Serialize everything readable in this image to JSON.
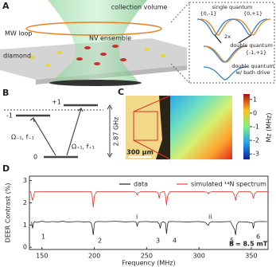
{
  "panel_a": {
    "letter": "A",
    "collection_volume": "collection volume",
    "mw_loop": "MW loop",
    "nv_ensemble": "NV ensemble",
    "diamond": "diamond",
    "inset": {
      "single_quantum": "single quantum",
      "sq_left": "{0,-1}",
      "sq_right": "{0,+1}",
      "factor": "2x",
      "double_quantum": "double quantum",
      "dq_label": "{-1,+1}",
      "bath_line1": "double quantum",
      "bath_line2": "w/ bath drive"
    }
  },
  "panel_b": {
    "letter": "B",
    "level_minus": "-1",
    "level_plus": "+1",
    "level_zero": "0",
    "drive_minus": "Ω₋₁, f₋₁",
    "drive_plus": "Ω₊₁, f₊₁",
    "splitting": "2.87 GHz"
  },
  "panel_c": {
    "letter": "C",
    "scale_bar": "300 μm",
    "colorbar_label": "Mz (MHz)",
    "colorbar_lim": [
      -3.4,
      1.4
    ],
    "colorbar_ticks": [
      1,
      0,
      -1,
      -2,
      -3
    ]
  },
  "panel_d": {
    "letter": "D",
    "xlabel": "Frequency (MHz)",
    "ylabel": "DEER Contrast (%)",
    "xlim": [
      138,
      366
    ],
    "ylim": [
      -0.1,
      3.2
    ],
    "xticks": [
      150,
      200,
      250,
      300,
      350
    ],
    "yticks": [
      0,
      1,
      2,
      3
    ],
    "series": [
      {
        "name": "data",
        "color": "#222222",
        "x": [
          140,
          141,
          142,
          143,
          145,
          150,
          155,
          160,
          165,
          170,
          175,
          180,
          185,
          190,
          195,
          197,
          198,
          199,
          200,
          201,
          203,
          210,
          220,
          230,
          238,
          240,
          241,
          242,
          244,
          250,
          255,
          260,
          262,
          263,
          264,
          266,
          268,
          269,
          270,
          271,
          273,
          280,
          290,
          300,
          306,
          308,
          309,
          310,
          312,
          320,
          330,
          334,
          335,
          336,
          338,
          345,
          351,
          352,
          353,
          355,
          360,
          365
        ],
        "values": [
          1.15,
          0.85,
          1.1,
          1.15,
          1.12,
          1.17,
          1.13,
          1.16,
          1.14,
          1.17,
          1.13,
          1.15,
          1.16,
          1.14,
          1.15,
          1.1,
          0.9,
          0.55,
          1.05,
          1.14,
          1.16,
          1.15,
          1.17,
          1.14,
          1.16,
          1.12,
          0.95,
          1.12,
          1.15,
          1.16,
          1.14,
          1.15,
          1.05,
          0.85,
          1.1,
          1.15,
          1.08,
          0.6,
          1.05,
          1.15,
          1.16,
          1.15,
          1.14,
          1.16,
          1.12,
          1.02,
          0.98,
          1.1,
          1.15,
          1.14,
          1.16,
          0.8,
          0.55,
          1.0,
          1.15,
          1.14,
          1.1,
          0.85,
          1.12,
          1.15,
          1.16,
          1.15
        ]
      },
      {
        "name": "simulated ¹⁴N spectrum",
        "color": "#e8413c",
        "x": [
          138,
          139,
          141,
          143,
          190,
          197,
          198,
          199,
          200,
          202,
          238,
          240,
          241,
          242,
          244,
          259,
          261,
          262,
          263,
          265,
          267,
          268,
          269,
          270,
          272,
          305,
          308,
          309,
          310,
          312,
          332,
          334,
          335,
          336,
          338,
          349,
          351,
          352,
          353,
          355,
          366
        ],
        "values": [
          2.5,
          2.5,
          2.1,
          2.5,
          2.5,
          2.5,
          2.3,
          1.8,
          2.3,
          2.5,
          2.5,
          2.45,
          2.35,
          2.45,
          2.5,
          2.5,
          2.45,
          2.2,
          2.45,
          2.5,
          2.5,
          2.3,
          1.9,
          2.3,
          2.5,
          2.5,
          2.47,
          2.4,
          2.47,
          2.5,
          2.5,
          2.35,
          2.1,
          2.35,
          2.5,
          2.5,
          2.4,
          2.2,
          2.4,
          2.5,
          2.5
        ]
      }
    ],
    "peak_labels": [
      "1",
      "2",
      "3",
      "4",
      "5",
      "6",
      "i",
      "ii"
    ],
    "field_label": "B",
    "field_value": "= 8.5 mT"
  }
}
